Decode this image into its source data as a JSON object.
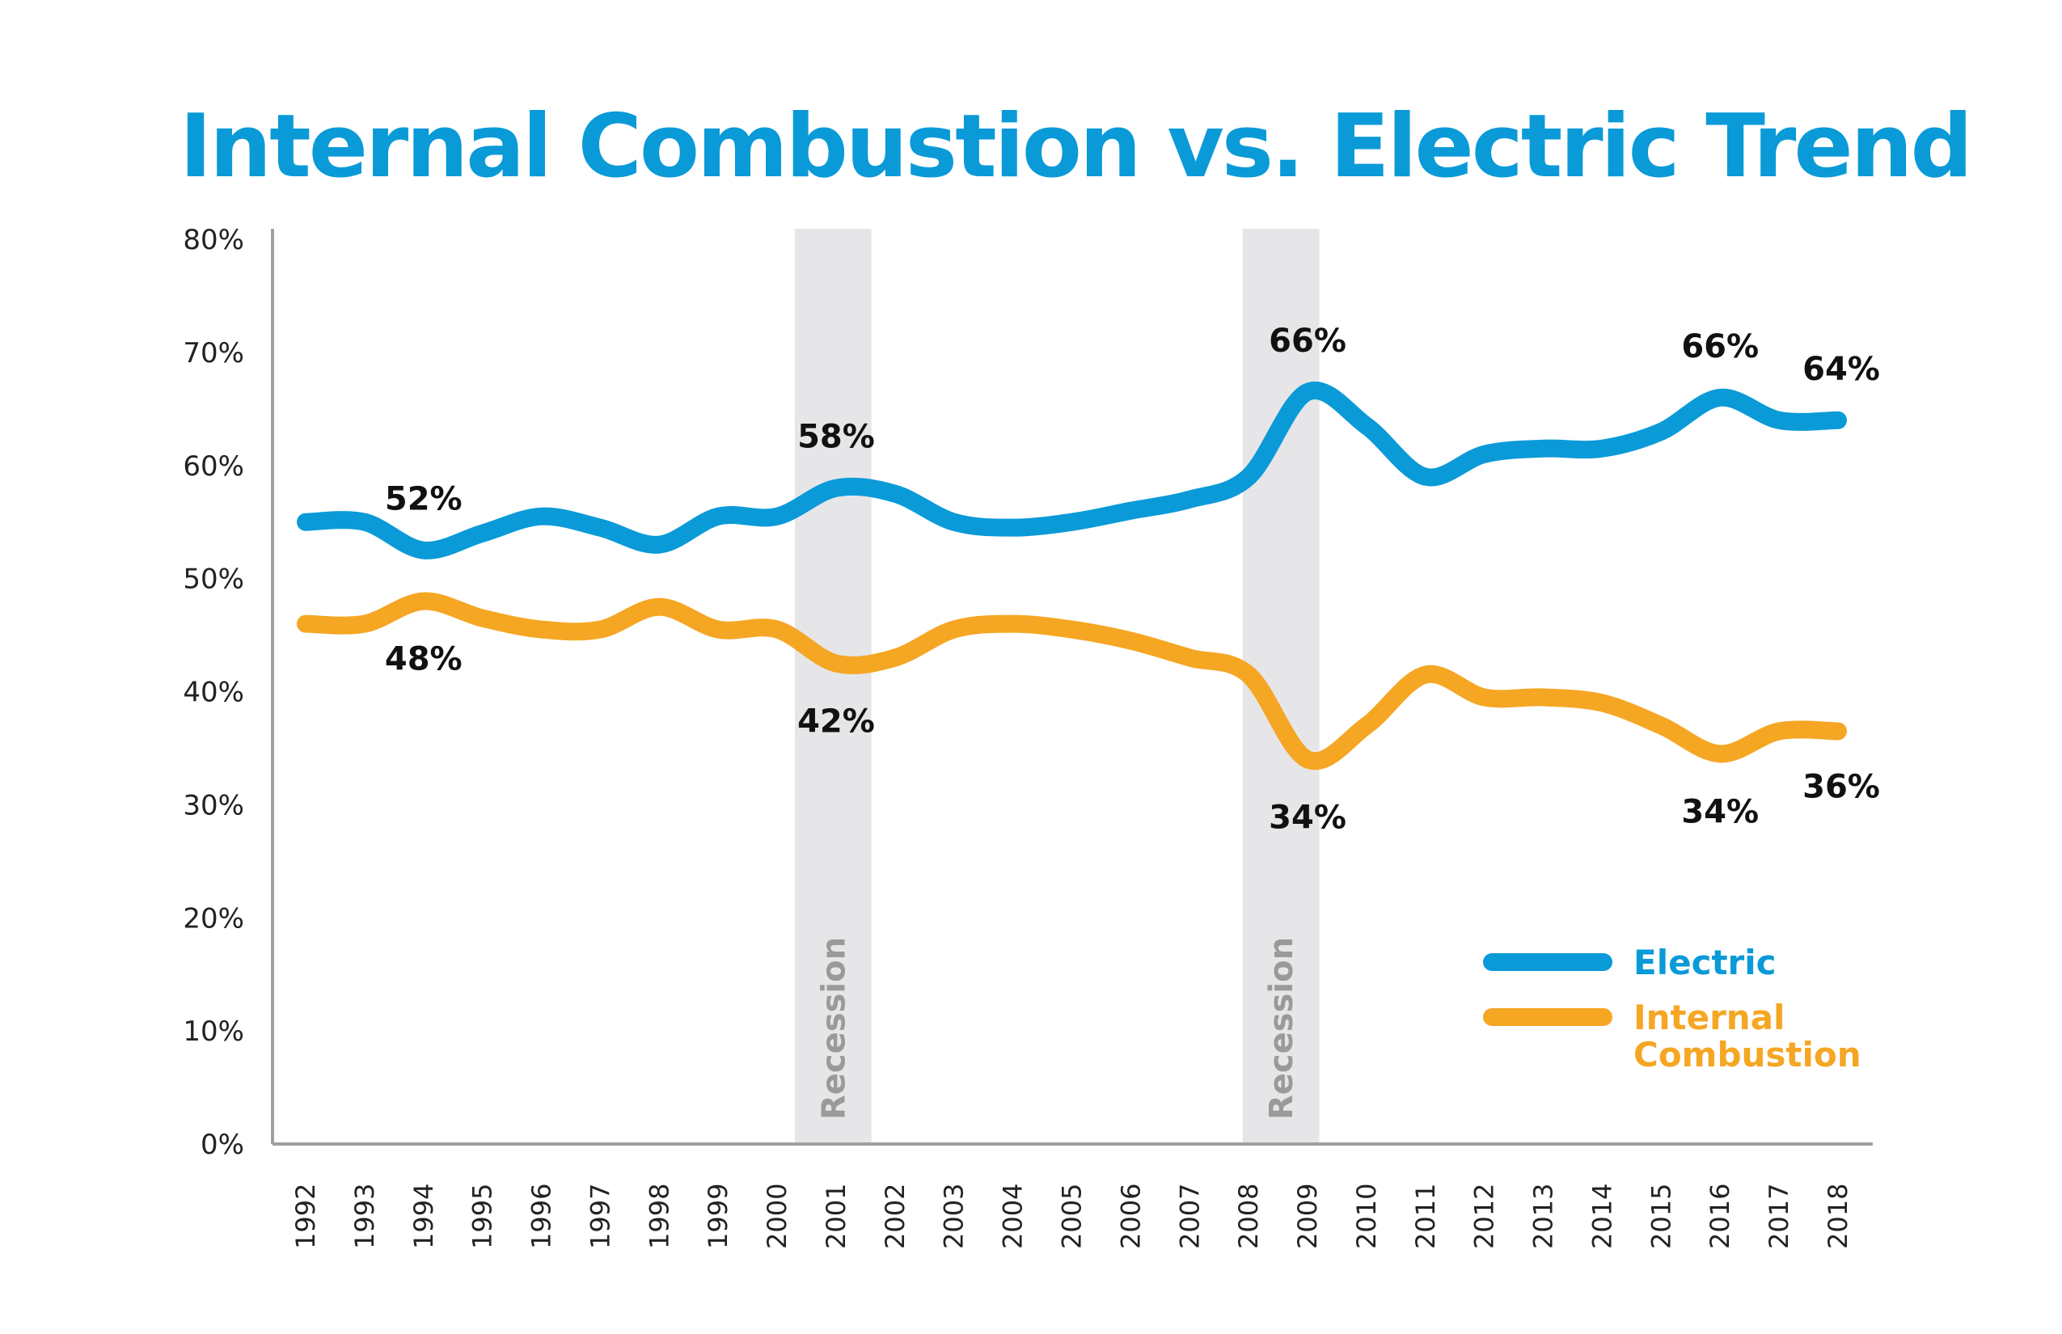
{
  "chart_data": {
    "type": "line",
    "title": "Internal Combustion vs. Electric Trend",
    "xlabel": "",
    "ylabel": "",
    "x": [
      1992,
      1993,
      1994,
      1995,
      1996,
      1997,
      1998,
      1999,
      2000,
      2001,
      2002,
      2003,
      2004,
      2005,
      2006,
      2007,
      2008,
      2009,
      2010,
      2011,
      2012,
      2013,
      2014,
      2015,
      2016,
      2017,
      2018
    ],
    "ylim": [
      0,
      80
    ],
    "yticks": [
      "0%",
      "10%",
      "20%",
      "30%",
      "40%",
      "50%",
      "60%",
      "70%",
      "80%"
    ],
    "grid": false,
    "legend_position": "bottom-right",
    "series": [
      {
        "name": "Electric",
        "color": "#0a9ad8",
        "values": [
          55,
          55,
          52.5,
          54,
          55.5,
          54.5,
          53,
          55.5,
          55.5,
          58,
          57.5,
          55,
          54.5,
          55,
          56,
          57,
          59,
          66.5,
          63.5,
          59,
          61,
          61.5,
          61.5,
          63,
          66,
          64,
          64
        ]
      },
      {
        "name": "Internal Combustion",
        "color": "#f5a623",
        "values": [
          46,
          46,
          48,
          46.5,
          45.5,
          45.5,
          47.5,
          45.5,
          45.5,
          42.5,
          43,
          45.5,
          46,
          45.5,
          44.5,
          43,
          41.5,
          34,
          37,
          41.5,
          39.5,
          39.5,
          39,
          37,
          34.5,
          36.5,
          36.5
        ]
      }
    ],
    "annotations": [
      {
        "series": 0,
        "x": 1994,
        "label": "52%"
      },
      {
        "series": 0,
        "x": 2001,
        "label": "58%"
      },
      {
        "series": 0,
        "x": 2009,
        "label": "66%"
      },
      {
        "series": 0,
        "x": 2016,
        "label": "66%"
      },
      {
        "series": 0,
        "x": 2018,
        "label": "64%"
      },
      {
        "series": 1,
        "x": 1994,
        "label": "48%"
      },
      {
        "series": 1,
        "x": 2001,
        "label": "42%"
      },
      {
        "series": 1,
        "x": 2009,
        "label": "34%"
      },
      {
        "series": 1,
        "x": 2016,
        "label": "34%"
      },
      {
        "series": 1,
        "x": 2018,
        "label": "36%"
      }
    ],
    "shaded_regions": [
      {
        "label": "Recession",
        "from": 2000.3,
        "to": 2001.6,
        "color": "#e6e6e8"
      },
      {
        "label": "Recession",
        "from": 2007.9,
        "to": 2009.2,
        "color": "#e6e6e8"
      }
    ]
  }
}
